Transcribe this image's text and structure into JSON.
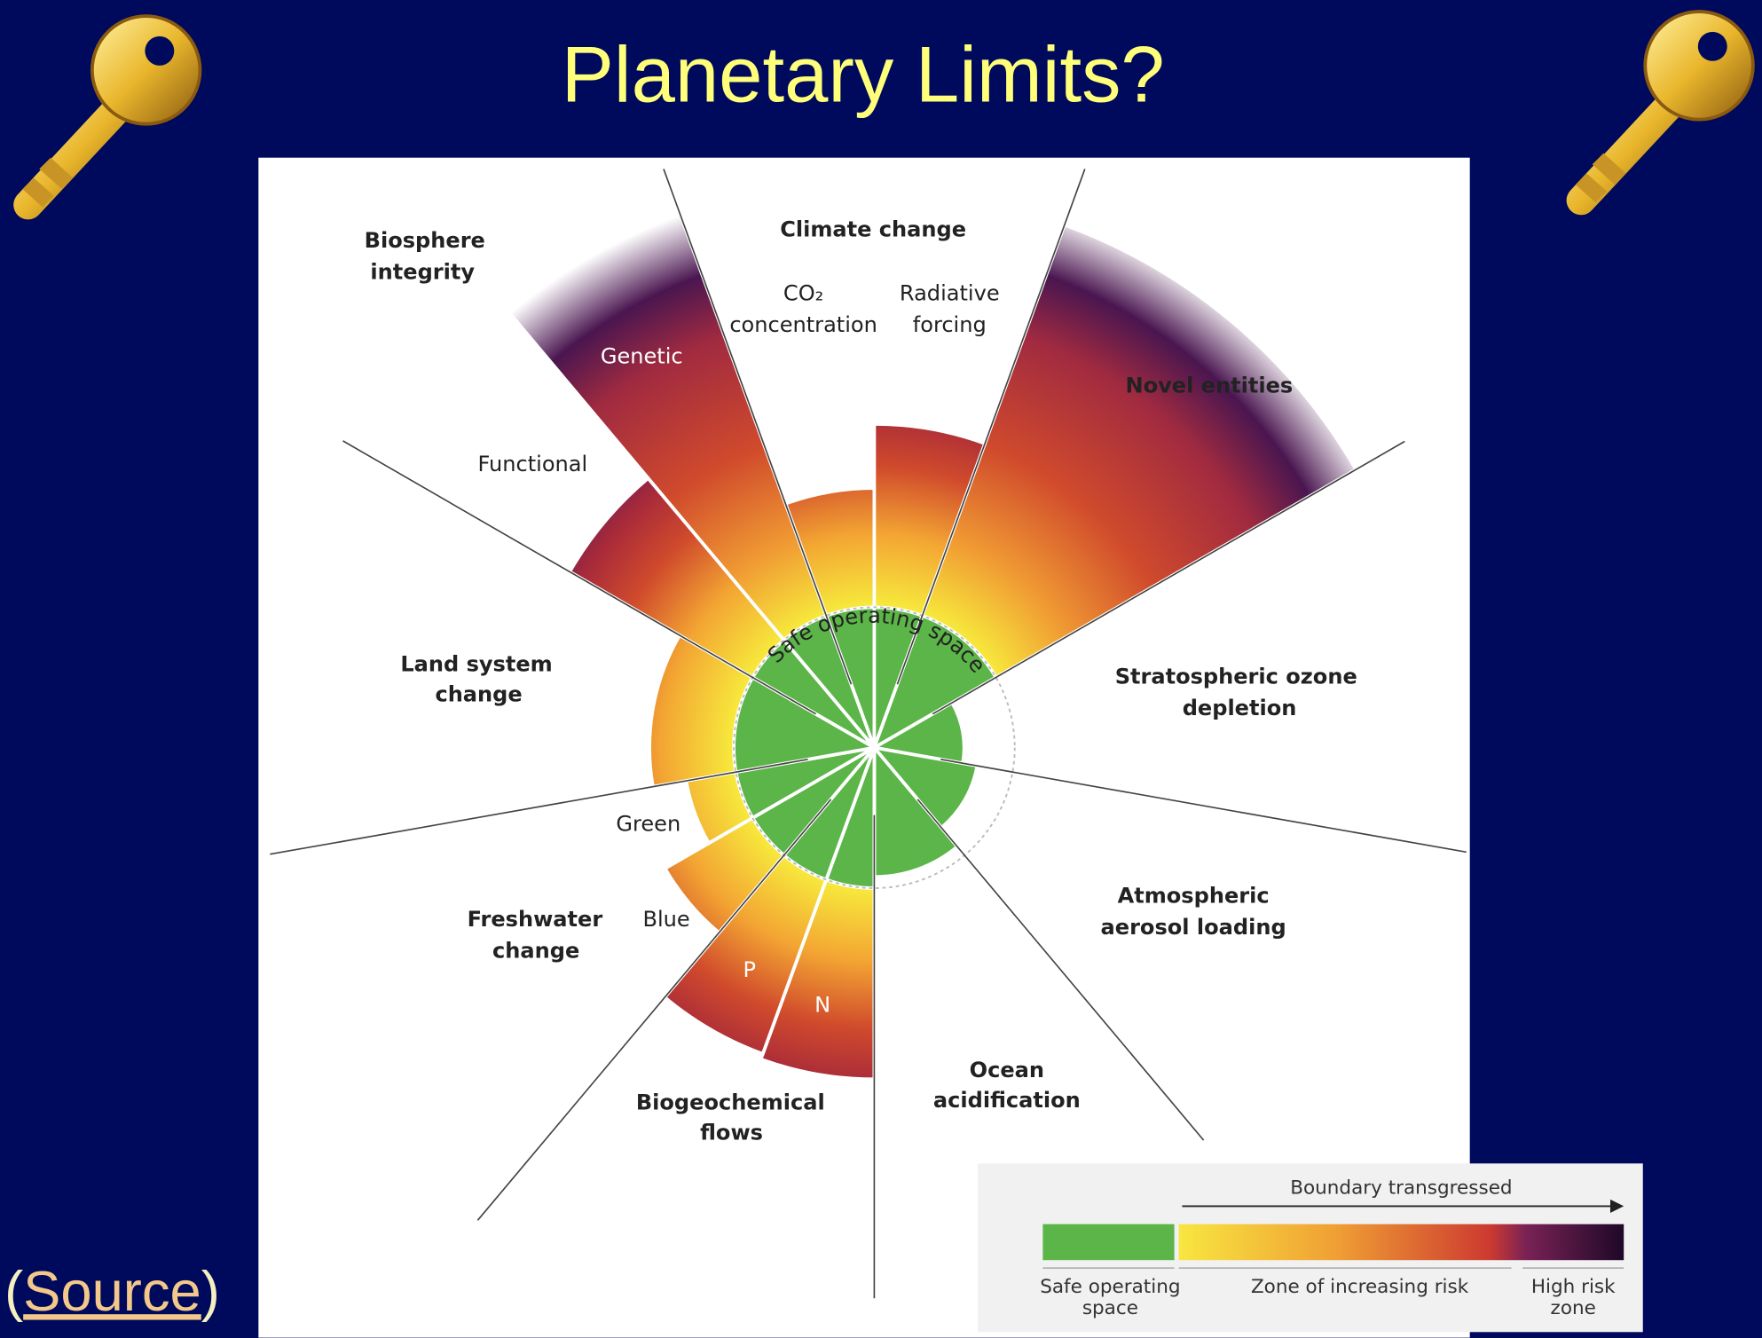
{
  "title": "Planetary Limits?",
  "source": {
    "open": "(",
    "link": "Source",
    "close": ")"
  },
  "diagram": {
    "center_label": "Safe operating space",
    "boundaries": [
      {
        "label": [
          "Climate change"
        ],
        "sublabels": [
          [
            "CO₂",
            "concentration"
          ],
          [
            "Radiative",
            "forcing"
          ]
        ]
      },
      {
        "label": [
          "Novel entities"
        ]
      },
      {
        "label": [
          "Stratospheric ozone",
          "depletion"
        ]
      },
      {
        "label": [
          "Atmospheric",
          "aerosol loading"
        ]
      },
      {
        "label": [
          "Ocean",
          "acidification"
        ]
      },
      {
        "label": [
          "Biogeochemical",
          "flows"
        ],
        "sublabels": [
          [
            "N"
          ],
          [
            "P"
          ]
        ]
      },
      {
        "label": [
          "Freshwater",
          "change"
        ],
        "sublabels": [
          [
            "Blue"
          ],
          [
            "Green"
          ]
        ]
      },
      {
        "label": [
          "Land system",
          "change"
        ]
      },
      {
        "label": [
          "Biosphere",
          "integrity"
        ],
        "sublabels": [
          [
            "Functional"
          ],
          [
            "Genetic"
          ]
        ]
      }
    ]
  },
  "legend": {
    "arrow_label": "Boundary transgressed",
    "zones": [
      [
        "Safe operating",
        "space"
      ],
      [
        "Zone of increasing risk"
      ],
      [
        "High risk",
        "zone"
      ]
    ]
  }
}
